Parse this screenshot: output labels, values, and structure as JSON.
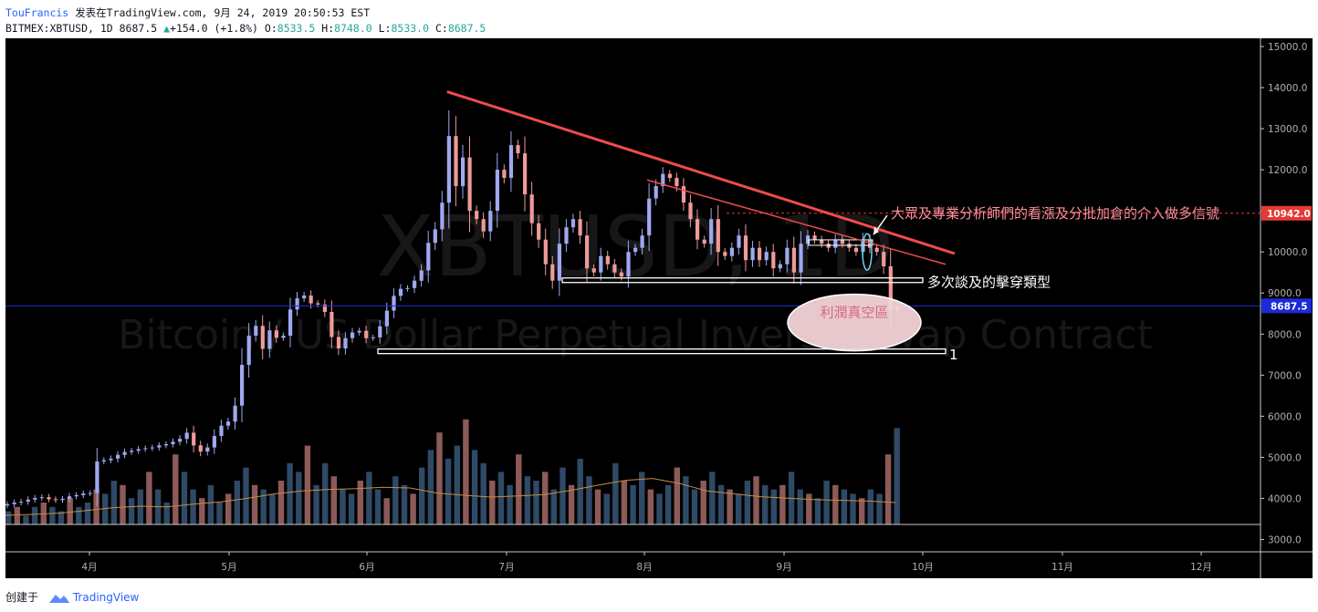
{
  "header": {
    "author": "TouFrancis",
    "published": "发表在TradingView.com, 9月 24, 2019 20:50:53 EST",
    "symbol_line": "BITMEX:XBTUSD, 1D 8687.5",
    "change": "+154.0 (+1.8%)",
    "o_label": "O:",
    "o_value": "8533.5",
    "h_label": "H:",
    "h_value": "8748.0",
    "l_label": "L:",
    "l_value": "8533.0",
    "c_label": "C:",
    "c_value": "8687.5"
  },
  "footer": {
    "created_label": "创建于",
    "brand": "TradingView"
  },
  "colors": {
    "background": "#000000",
    "bull_candle": "#9fa8f0",
    "bear_candle": "#ef9a9a",
    "volume_bull": "#2e4a66",
    "volume_bear": "#8c5a58",
    "trendline": "#ef4b4b",
    "current_price": "#1c2bd9",
    "resistance_price": "#e53935",
    "annotation_pink": "#ff8f9c",
    "ma_line": "#c98a48"
  },
  "chart_data": {
    "type": "candlestick",
    "symbol": "XBTUSD, 1D",
    "watermark_symbol": "XBTUSD, 1D",
    "watermark_description": "Bitcoin / US Dollar Perpetual Inverse Swap Contract",
    "y_axis": {
      "min": 2700,
      "max": 15200,
      "ticks": [
        "15000.0",
        "14000.0",
        "13000.0",
        "12000.0",
        "11000.0",
        "10000.0",
        "9000.0",
        "8000.0",
        "7000.0",
        "6000.0",
        "5000.0",
        "4000.0",
        "3000.0"
      ]
    },
    "x_axis_ticks": [
      "4月",
      "5月",
      "6月",
      "7月",
      "8月",
      "9月",
      "10月",
      "11月",
      "12月"
    ],
    "last_price_label": "8687.5",
    "last_price": 8687.5,
    "resistance_label": "10942.0",
    "resistance_price": 10942,
    "candles": [
      [
        0,
        3860
      ],
      [
        2,
        3900
      ],
      [
        4,
        3920
      ],
      [
        6,
        3970
      ],
      [
        8,
        4010
      ],
      [
        10,
        4030
      ],
      [
        12,
        3980
      ],
      [
        14,
        3960
      ],
      [
        16,
        3990
      ],
      [
        18,
        4050
      ],
      [
        20,
        4080
      ],
      [
        22,
        4120
      ],
      [
        24,
        4130
      ],
      [
        26,
        4900
      ],
      [
        28,
        4930
      ],
      [
        30,
        4970
      ],
      [
        32,
        5060
      ],
      [
        34,
        5130
      ],
      [
        36,
        5160
      ],
      [
        38,
        5200
      ],
      [
        40,
        5220
      ],
      [
        42,
        5240
      ],
      [
        44,
        5290
      ],
      [
        46,
        5320
      ],
      [
        48,
        5380
      ],
      [
        50,
        5450
      ],
      [
        52,
        5600
      ],
      [
        54,
        5290
      ],
      [
        56,
        5140
      ],
      [
        58,
        5240
      ],
      [
        60,
        5520
      ],
      [
        62,
        5770
      ],
      [
        64,
        5870
      ],
      [
        66,
        6260
      ],
      [
        68,
        7250
      ],
      [
        70,
        7960
      ],
      [
        72,
        8200
      ],
      [
        74,
        7640
      ],
      [
        76,
        8090
      ],
      [
        78,
        7910
      ],
      [
        80,
        7960
      ],
      [
        82,
        8600
      ],
      [
        84,
        8870
      ],
      [
        86,
        8940
      ],
      [
        88,
        8750
      ],
      [
        90,
        8720
      ],
      [
        92,
        8540
      ],
      [
        94,
        7930
      ],
      [
        96,
        7650
      ],
      [
        98,
        7900
      ],
      [
        100,
        8040
      ],
      [
        102,
        8080
      ],
      [
        104,
        7900
      ],
      [
        106,
        7920
      ],
      [
        108,
        8190
      ],
      [
        110,
        8570
      ],
      [
        112,
        8930
      ],
      [
        114,
        9100
      ],
      [
        116,
        9120
      ],
      [
        118,
        9300
      ],
      [
        120,
        9550
      ],
      [
        122,
        10220
      ],
      [
        124,
        10550
      ],
      [
        126,
        11200
      ],
      [
        128,
        12820
      ],
      [
        130,
        11600
      ],
      [
        132,
        12300
      ],
      [
        134,
        11000
      ],
      [
        136,
        10800
      ],
      [
        138,
        10500
      ],
      [
        140,
        11000
      ],
      [
        142,
        12000
      ],
      [
        144,
        11800
      ],
      [
        146,
        12600
      ],
      [
        148,
        12400
      ],
      [
        150,
        11400
      ],
      [
        152,
        10700
      ],
      [
        154,
        10300
      ],
      [
        156,
        9700
      ],
      [
        158,
        9300
      ],
      [
        160,
        10200
      ],
      [
        162,
        10600
      ],
      [
        164,
        10800
      ],
      [
        166,
        10400
      ],
      [
        168,
        9600
      ],
      [
        170,
        9500
      ],
      [
        172,
        9900
      ],
      [
        174,
        9700
      ],
      [
        176,
        9500
      ],
      [
        178,
        9400
      ],
      [
        180,
        10000
      ],
      [
        182,
        10100
      ],
      [
        184,
        10400
      ],
      [
        186,
        11300
      ],
      [
        188,
        11600
      ],
      [
        190,
        11900
      ],
      [
        192,
        11800
      ],
      [
        194,
        11600
      ],
      [
        196,
        11200
      ],
      [
        198,
        10800
      ],
      [
        200,
        10300
      ],
      [
        202,
        10200
      ],
      [
        204,
        10800
      ],
      [
        206,
        10000
      ],
      [
        208,
        9900
      ],
      [
        210,
        10100
      ],
      [
        212,
        10400
      ],
      [
        214,
        9800
      ],
      [
        216,
        10100
      ],
      [
        218,
        9800
      ],
      [
        220,
        10000
      ],
      [
        222,
        9600
      ],
      [
        224,
        9700
      ],
      [
        226,
        10100
      ],
      [
        228,
        9500
      ],
      [
        230,
        10200
      ],
      [
        232,
        10400
      ],
      [
        234,
        10300
      ],
      [
        236,
        10200
      ],
      [
        238,
        10100
      ],
      [
        240,
        10300
      ],
      [
        242,
        10200
      ],
      [
        244,
        10100
      ],
      [
        246,
        10000
      ],
      [
        248,
        10300
      ],
      [
        250,
        10100
      ],
      [
        252,
        10000
      ],
      [
        254,
        9650
      ],
      [
        256,
        8580
      ],
      [
        258,
        8690
      ]
    ],
    "volume_levels": [
      3,
      4,
      2,
      4,
      5,
      4,
      3,
      6,
      4,
      5,
      8,
      7,
      10,
      9,
      6,
      8,
      12,
      8,
      5,
      16,
      12,
      8,
      6,
      9,
      5,
      7,
      10,
      13,
      9,
      8,
      7,
      10,
      14,
      12,
      18,
      9,
      14,
      11,
      8,
      7,
      10,
      12,
      8,
      6,
      11,
      9,
      7,
      13,
      17,
      21,
      15,
      18,
      24,
      17,
      14,
      10,
      12,
      9,
      16,
      11,
      10,
      12,
      8,
      13,
      9,
      15,
      11,
      8,
      7,
      14,
      10,
      9,
      12,
      8,
      7,
      9,
      13,
      11,
      8,
      10,
      12,
      9,
      8,
      7,
      10,
      11,
      9,
      8,
      9,
      12,
      8,
      7,
      6,
      10,
      9,
      8,
      7,
      6,
      8,
      7,
      16,
      22
    ],
    "ma_values": [
      2950,
      2975,
      3010,
      3080,
      3160,
      3200,
      3180,
      3260,
      3320,
      3420,
      3540,
      3620,
      3660,
      3680,
      3720,
      3700,
      3560,
      3500,
      3450,
      3480,
      3520,
      3640,
      3780,
      3910,
      3960,
      3820,
      3620,
      3540,
      3460,
      3420,
      3380,
      3360,
      3340,
      3300
    ],
    "annotations": [
      {
        "text": "大眾及專業分析師們的看漲及分批加倉的介入做多信號",
        "price": 10940
      },
      {
        "text": "多次談及的擊穿類型",
        "price": 9280
      },
      {
        "text": "利潤真空區",
        "price": 8530
      },
      {
        "text": "1",
        "price": 7520
      }
    ],
    "trendlines": [
      {
        "from_price": 13900,
        "to_price": 9960
      }
    ],
    "support_levels": [
      9300,
      7570
    ]
  }
}
